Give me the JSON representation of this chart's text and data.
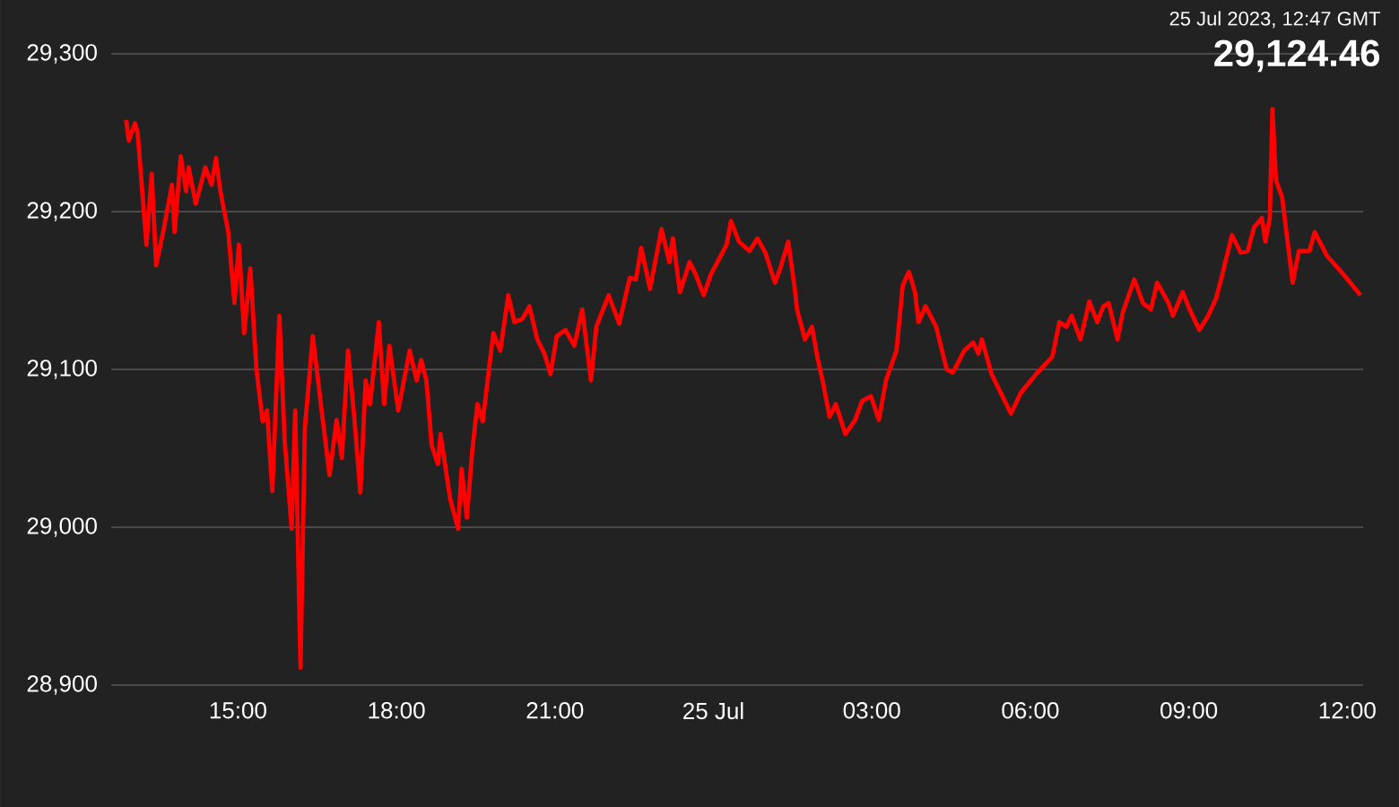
{
  "chart_data": {
    "type": "line",
    "color": "#ff0000",
    "grid": "y",
    "xlim": [
      "2023-07-24T12:36",
      "2023-07-25T12:18"
    ],
    "ylim": [
      28900,
      29300
    ],
    "xticks": [
      {
        "value": "2023-07-24T15:00",
        "label": "15:00"
      },
      {
        "value": "2023-07-24T18:00",
        "label": "18:00"
      },
      {
        "value": "2023-07-24T21:00",
        "label": "21:00"
      },
      {
        "value": "2023-07-25T00:00",
        "label": "25 Jul"
      },
      {
        "value": "2023-07-25T03:00",
        "label": "03:00"
      },
      {
        "value": "2023-07-25T06:00",
        "label": "06:00"
      },
      {
        "value": "2023-07-25T09:00",
        "label": "09:00"
      },
      {
        "value": "2023-07-25T12:00",
        "label": "12:00"
      }
    ],
    "yticks": [
      {
        "value": 28900,
        "label": "28,900"
      },
      {
        "value": 29000,
        "label": "29,000"
      },
      {
        "value": 29100,
        "label": "29,100"
      },
      {
        "value": 29200,
        "label": "29,200"
      },
      {
        "value": 29300,
        "label": "29,300"
      }
    ],
    "annotations": [
      "25 Jul 2023, 12:47 GMT",
      "29,124.46"
    ],
    "x": [
      "2023-07-24T12:53",
      "2023-07-24T12:56",
      "2023-07-24T13:03",
      "2023-07-24T13:06",
      "2023-07-24T13:16",
      "2023-07-24T13:22",
      "2023-07-24T13:27",
      "2023-07-24T13:35",
      "2023-07-24T13:45",
      "2023-07-24T13:48",
      "2023-07-24T13:55",
      "2023-07-24T14:01",
      "2023-07-24T14:04",
      "2023-07-24T14:12",
      "2023-07-24T14:23",
      "2023-07-24T14:30",
      "2023-07-24T14:35",
      "2023-07-24T14:40",
      "2023-07-24T14:49",
      "2023-07-24T14:56",
      "2023-07-24T15:01",
      "2023-07-24T15:07",
      "2023-07-24T15:14",
      "2023-07-24T15:21",
      "2023-07-24T15:28",
      "2023-07-24T15:33",
      "2023-07-24T15:39",
      "2023-07-24T15:47",
      "2023-07-24T15:53",
      "2023-07-24T16:01",
      "2023-07-24T16:05",
      "2023-07-24T16:11",
      "2023-07-24T16:16",
      "2023-07-24T16:25",
      "2023-07-24T16:35",
      "2023-07-24T16:44",
      "2023-07-24T16:52",
      "2023-07-24T16:58",
      "2023-07-24T17:05",
      "2023-07-24T17:12",
      "2023-07-24T17:19",
      "2023-07-24T17:25",
      "2023-07-24T17:30",
      "2023-07-24T17:40",
      "2023-07-24T17:46",
      "2023-07-24T17:52",
      "2023-07-24T18:02",
      "2023-07-24T18:15",
      "2023-07-24T18:23",
      "2023-07-24T18:28",
      "2023-07-24T18:34",
      "2023-07-24T18:40",
      "2023-07-24T18:47",
      "2023-07-24T18:50",
      "2023-07-24T18:57",
      "2023-07-24T19:01",
      "2023-07-24T19:10",
      "2023-07-24T19:14",
      "2023-07-24T19:20",
      "2023-07-24T19:26",
      "2023-07-24T19:32",
      "2023-07-24T19:38",
      "2023-07-24T19:50",
      "2023-07-24T19:58",
      "2023-07-24T20:07",
      "2023-07-24T20:14",
      "2023-07-24T20:23",
      "2023-07-24T20:31",
      "2023-07-24T20:40",
      "2023-07-24T20:48",
      "2023-07-24T20:55",
      "2023-07-24T21:02",
      "2023-07-24T21:12",
      "2023-07-24T21:22",
      "2023-07-24T21:31",
      "2023-07-24T21:41",
      "2023-07-24T21:47",
      "2023-07-24T22:01",
      "2023-07-24T22:13",
      "2023-07-24T22:25",
      "2023-07-24T22:32",
      "2023-07-24T22:38",
      "2023-07-24T22:48",
      "2023-07-24T23:01",
      "2023-07-24T23:10",
      "2023-07-24T23:14",
      "2023-07-24T23:22",
      "2023-07-24T23:33",
      "2023-07-24T23:40",
      "2023-07-24T23:49",
      "2023-07-24T23:57",
      "2023-07-25T00:15",
      "2023-07-25T00:20",
      "2023-07-25T00:29",
      "2023-07-25T00:41",
      "2023-07-25T00:50",
      "2023-07-25T00:59",
      "2023-07-25T01:10",
      "2023-07-25T01:16",
      "2023-07-25T01:25",
      "2023-07-25T01:32",
      "2023-07-25T01:35",
      "2023-07-25T01:44",
      "2023-07-25T01:52",
      "2023-07-25T01:58",
      "2023-07-25T02:04",
      "2023-07-25T02:12",
      "2023-07-25T02:19",
      "2023-07-25T02:30",
      "2023-07-25T02:41",
      "2023-07-25T02:49",
      "2023-07-25T02:59",
      "2023-07-25T03:08",
      "2023-07-25T03:16",
      "2023-07-25T03:28",
      "2023-07-25T03:35",
      "2023-07-25T03:42",
      "2023-07-25T03:49",
      "2023-07-25T03:53",
      "2023-07-25T04:01",
      "2023-07-25T04:13",
      "2023-07-25T04:25",
      "2023-07-25T04:32",
      "2023-07-25T04:45",
      "2023-07-25T04:55",
      "2023-07-25T05:01",
      "2023-07-25T05:05",
      "2023-07-25T05:16",
      "2023-07-25T05:23",
      "2023-07-25T05:38",
      "2023-07-25T05:49",
      "2023-07-25T06:08",
      "2023-07-25T06:25",
      "2023-07-25T06:33",
      "2023-07-25T06:41",
      "2023-07-25T06:47",
      "2023-07-25T06:57",
      "2023-07-25T07:07",
      "2023-07-25T07:16",
      "2023-07-25T07:23",
      "2023-07-25T07:29",
      "2023-07-25T07:39",
      "2023-07-25T07:45",
      "2023-07-25T07:58",
      "2023-07-25T08:08",
      "2023-07-25T08:17",
      "2023-07-25T08:24",
      "2023-07-25T08:37",
      "2023-07-25T08:42",
      "2023-07-25T08:53",
      "2023-07-25T09:01",
      "2023-07-25T09:12",
      "2023-07-25T09:22",
      "2023-07-25T09:31",
      "2023-07-25T09:38",
      "2023-07-25T09:49",
      "2023-07-25T09:59",
      "2023-07-25T10:07",
      "2023-07-25T10:14",
      "2023-07-25T10:23",
      "2023-07-25T10:27",
      "2023-07-25T10:32",
      "2023-07-25T10:35",
      "2023-07-25T10:39",
      "2023-07-25T10:46",
      "2023-07-25T10:58",
      "2023-07-25T11:05",
      "2023-07-25T11:17",
      "2023-07-25T11:23",
      "2023-07-25T11:37",
      "2023-07-25T11:56",
      "2023-07-25T12:15"
    ],
    "values": [
      29258,
      29245,
      29256,
      29250,
      29179,
      29224,
      29166,
      29187,
      29217,
      29187,
      29235,
      29213,
      29228,
      29205,
      29228,
      29217,
      29234,
      29213,
      29187,
      29142,
      29179,
      29123,
      29164,
      29100,
      29067,
      29074,
      29023,
      29134,
      29055,
      28999,
      29074,
      28911,
      29063,
      29121,
      29074,
      29033,
      29068,
      29044,
      29112,
      29070,
      29022,
      29093,
      29078,
      29130,
      29078,
      29115,
      29074,
      29112,
      29093,
      29106,
      29093,
      29052,
      29040,
      29059,
      29033,
      29018,
      28999,
      29037,
      29006,
      29048,
      29078,
      29067,
      29123,
      29112,
      29147,
      29130,
      29132,
      29140,
      29119,
      29110,
      29097,
      29121,
      29125,
      29115,
      29138,
      29093,
      29127,
      29147,
      29129,
      29158,
      29157,
      29177,
      29151,
      29189,
      29168,
      29183,
      29149,
      29168,
      29160,
      29147,
      29160,
      29179,
      29194,
      29181,
      29175,
      29183,
      29174,
      29155,
      29164,
      29181,
      29153,
      29138,
      29119,
      29127,
      29108,
      29093,
      29070,
      29078,
      29059,
      29068,
      29080,
      29083,
      29068,
      29093,
      29112,
      29153,
      29162,
      29149,
      29130,
      29140,
      29127,
      29100,
      29098,
      29112,
      29117,
      29110,
      29119,
      29097,
      29089,
      29072,
      29085,
      29098,
      29108,
      29130,
      29127,
      29134,
      29119,
      29143,
      29130,
      29140,
      29142,
      29119,
      29136,
      29157,
      29142,
      29138,
      29155,
      29142,
      29134,
      29149,
      29138,
      29125,
      29134,
      29145,
      29160,
      29185,
      29174,
      29175,
      29190,
      29196,
      29181,
      29196,
      29265,
      29220,
      29209,
      29155,
      29175,
      29175,
      29187,
      29172,
      29160,
      29147
    ]
  }
}
